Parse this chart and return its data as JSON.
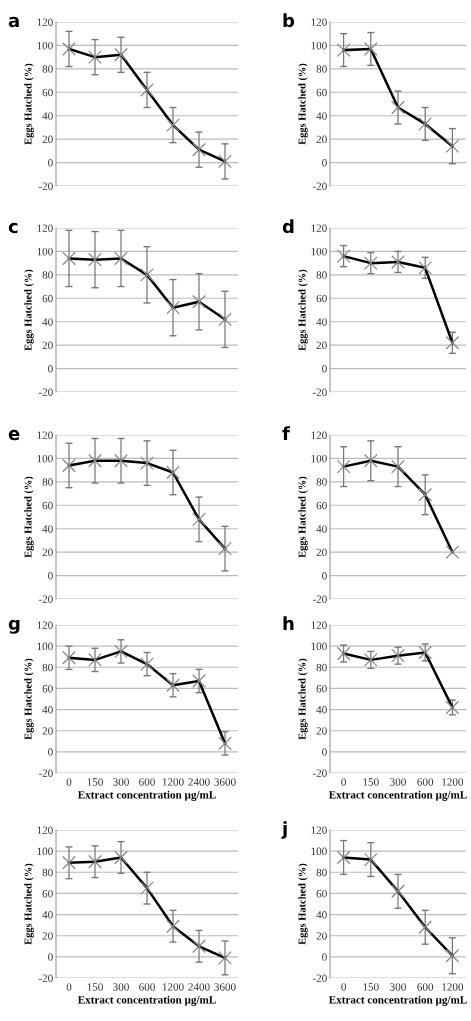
{
  "chart_data": [
    {
      "type": "line",
      "title": "a",
      "ylabel": "Eggs Hatched (%)",
      "categories": [
        null,
        null,
        null,
        null,
        null,
        null,
        null
      ],
      "series": [
        {
          "color": "#000000",
          "values": [
            97,
            90,
            92,
            62,
            32,
            11,
            1
          ],
          "errors": [
            15,
            15,
            15,
            15,
            15,
            15,
            15
          ]
        }
      ],
      "ylim": [
        -20,
        120
      ],
      "yticks": [
        -20,
        0,
        20,
        40,
        60,
        80,
        100,
        120
      ],
      "grid": "y",
      "marker": "cross",
      "line_style": "solid",
      "tick_labels": "y"
    },
    {
      "type": "line",
      "title": "b",
      "ylabel": "Eggs Hatched (%)",
      "categories": [
        null,
        null,
        null,
        null,
        null
      ],
      "series": [
        {
          "color": "#000000",
          "values": [
            96,
            97,
            47,
            33,
            14
          ],
          "errors": [
            14,
            14,
            14,
            14,
            15
          ]
        }
      ],
      "ylim": [
        -20,
        120
      ],
      "yticks": [
        -20,
        0,
        20,
        40,
        60,
        80,
        100,
        120
      ],
      "grid": "y",
      "marker": "cross",
      "line_style": "solid",
      "tick_labels": "y"
    },
    {
      "type": "line",
      "title": "c",
      "ylabel": "Eggs Hatched (%)",
      "categories": [
        null,
        null,
        null,
        null,
        null,
        null,
        null
      ],
      "series": [
        {
          "color": "#000000",
          "values": [
            94,
            93,
            94,
            80,
            52,
            57,
            42
          ],
          "errors": [
            24,
            24,
            24,
            24,
            24,
            24,
            24
          ]
        }
      ],
      "ylim": [
        -20,
        120
      ],
      "yticks": [
        -20,
        0,
        20,
        40,
        60,
        80,
        100,
        120
      ],
      "grid": "y",
      "marker": "cross",
      "line_style": "solid",
      "tick_labels": "y"
    },
    {
      "type": "line",
      "title": "d",
      "ylabel": "Eggs Hatched (%)",
      "categories": [
        null,
        null,
        null,
        null,
        null
      ],
      "series": [
        {
          "color": "#000000",
          "values": [
            96,
            90,
            91,
            86,
            22
          ],
          "errors": [
            9,
            9,
            9,
            9,
            9
          ]
        }
      ],
      "ylim": [
        -20,
        120
      ],
      "yticks": [
        -20,
        0,
        20,
        40,
        60,
        80,
        100,
        120
      ],
      "grid": "y",
      "marker": "cross",
      "line_style": "solid",
      "tick_labels": "y"
    },
    {
      "type": "line",
      "title": "e",
      "ylabel": "Eggs Hatched (%)",
      "categories": [
        null,
        null,
        null,
        null,
        null,
        null,
        null
      ],
      "series": [
        {
          "color": "#000000",
          "values": [
            94,
            98,
            98,
            96,
            88,
            48,
            23
          ],
          "errors": [
            19,
            19,
            19,
            19,
            19,
            19,
            19
          ]
        }
      ],
      "ylim": [
        -20,
        120
      ],
      "yticks": [
        -20,
        0,
        20,
        40,
        60,
        80,
        100,
        120
      ],
      "grid": "y",
      "marker": "cross",
      "line_style": "solid",
      "tick_labels": "y"
    },
    {
      "type": "line",
      "title": "f",
      "ylabel": "Eggs Hatched (%)",
      "categories": [
        null,
        null,
        null,
        null,
        null
      ],
      "series": [
        {
          "color": "#000000",
          "values": [
            93,
            98,
            93,
            69,
            20
          ],
          "errors": [
            17,
            17,
            17,
            17,
            null
          ]
        }
      ],
      "ylim": [
        -20,
        120
      ],
      "yticks": [
        -20,
        0,
        20,
        40,
        60,
        80,
        100,
        120
      ],
      "grid": "y",
      "marker": "cross",
      "line_style": "solid",
      "tick_labels": "y"
    },
    {
      "type": "line",
      "title": "g",
      "ylabel": "Eggs Hatched (%)",
      "xlabel": "Extract concentration µg/mL",
      "categories": [
        "0",
        "150",
        "300",
        "600",
        "1200",
        "2400",
        "3600"
      ],
      "series": [
        {
          "color": "#000000",
          "values": [
            89,
            87,
            95,
            83,
            63,
            67,
            8
          ],
          "errors": [
            11,
            11,
            11,
            11,
            11,
            11,
            11
          ]
        }
      ],
      "ylim": [
        -20,
        120
      ],
      "yticks": [
        -20,
        0,
        20,
        40,
        60,
        80,
        100,
        120
      ],
      "grid": "y",
      "marker": "cross",
      "line_style": "solid"
    },
    {
      "type": "line",
      "title": "h",
      "ylabel": "Eggs Hatched (%)",
      "xlabel": "Extract concentration µg/mL",
      "categories": [
        "0",
        "150",
        "300",
        "600",
        "1200"
      ],
      "series": [
        {
          "color": "#000000",
          "values": [
            93,
            87,
            91,
            94,
            42
          ],
          "errors": [
            8,
            8,
            8,
            8,
            7
          ]
        }
      ],
      "ylim": [
        -20,
        120
      ],
      "yticks": [
        -20,
        0,
        20,
        40,
        60,
        80,
        100,
        120
      ],
      "grid": "y",
      "marker": "cross",
      "line_style": "solid"
    },
    {
      "type": "line",
      "ylabel": "Eggs Hatched (%)",
      "xlabel": "Extract concentration µg/mL",
      "categories": [
        "0",
        "150",
        "300",
        "600",
        "1200",
        "2400",
        "3600"
      ],
      "series": [
        {
          "color": "#000000",
          "values": [
            89,
            90,
            94,
            65,
            29,
            10,
            -1
          ],
          "errors": [
            15,
            15,
            15,
            15,
            15,
            15,
            16
          ]
        }
      ],
      "ylim": [
        -20,
        120
      ],
      "yticks": [
        -20,
        0,
        20,
        40,
        60,
        80,
        100,
        120
      ],
      "grid": "y",
      "marker": "cross",
      "line_style": "solid"
    },
    {
      "type": "line",
      "title": "j",
      "ylabel": "Eggs Hatched (%)",
      "xlabel": "Extract concentration µg/mL",
      "categories": [
        "0",
        "150",
        "300",
        "600",
        "1200"
      ],
      "series": [
        {
          "color": "#000000",
          "values": [
            94,
            92,
            62,
            28,
            1
          ],
          "errors": [
            16,
            16,
            16,
            16,
            17
          ]
        }
      ],
      "ylim": [
        -20,
        120
      ],
      "yticks": [
        -20,
        0,
        20,
        40,
        60,
        80,
        100,
        120
      ],
      "grid": "y",
      "marker": "cross",
      "line_style": "solid"
    }
  ]
}
